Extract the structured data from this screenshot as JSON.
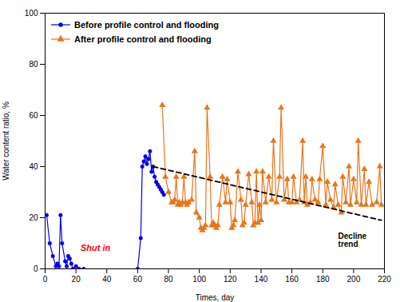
{
  "chart_data": {
    "type": "line",
    "title": "",
    "xlabel": "Times, day",
    "ylabel": "Water content ratio, %",
    "xlim": [
      0,
      220
    ],
    "ylim": [
      0,
      100
    ],
    "xticks": [
      0,
      20,
      40,
      60,
      80,
      100,
      120,
      140,
      160,
      180,
      200,
      220
    ],
    "yticks": [
      0,
      20,
      40,
      60,
      80,
      100
    ],
    "grid": false,
    "legend": "upper left",
    "series": [
      {
        "name": "Before profile control and flooding",
        "color": "#0000EE",
        "marker": "circle",
        "line_style": "solid",
        "x": [
          1,
          3,
          5,
          7,
          8,
          9,
          10,
          11,
          13,
          14,
          15,
          16,
          17,
          18,
          20,
          22,
          25,
          60,
          62,
          63,
          64,
          65,
          66,
          67,
          68,
          69,
          70,
          71,
          72,
          73,
          74,
          75,
          76,
          77
        ],
        "values": [
          21,
          10,
          5,
          1,
          2,
          1,
          21,
          10,
          3,
          1,
          5,
          4,
          2,
          0,
          1,
          0,
          0,
          0,
          12,
          40,
          42,
          44,
          41,
          43,
          46,
          38,
          40,
          36,
          34,
          33,
          32,
          31,
          30,
          29
        ]
      },
      {
        "name": "After profile control and flooding",
        "color": "#E8761A",
        "marker": "triangle",
        "line_style": "solid",
        "x": [
          76,
          78,
          80,
          82,
          83,
          84,
          85,
          86,
          87,
          88,
          89,
          90,
          91,
          92,
          93,
          95,
          97,
          98,
          100,
          101,
          102,
          103,
          104,
          105,
          107,
          108,
          109,
          110,
          111,
          112,
          113,
          115,
          117,
          118,
          120,
          121,
          122,
          123,
          125,
          127,
          128,
          129,
          130,
          132,
          134,
          135,
          136,
          137,
          138,
          139,
          140,
          141,
          143,
          145,
          147,
          148,
          150,
          152,
          153,
          155,
          157,
          158,
          160,
          161,
          163,
          165,
          167,
          168,
          169,
          170,
          172,
          173,
          175,
          177,
          178,
          180,
          182,
          183,
          185,
          187,
          188,
          190,
          192,
          193,
          195,
          197,
          198,
          200,
          202,
          203,
          205,
          207,
          208,
          210,
          212,
          215,
          217,
          218
        ],
        "values": [
          64,
          36,
          30,
          26,
          26,
          27,
          36,
          25,
          26,
          25,
          26,
          36,
          26,
          25,
          26,
          27,
          46,
          22,
          20,
          16,
          15,
          16,
          17,
          63,
          36,
          17,
          18,
          17,
          16,
          17,
          25,
          36,
          26,
          35,
          26,
          16,
          17,
          19,
          38,
          27,
          17,
          18,
          25,
          37,
          26,
          17,
          18,
          38,
          18,
          25,
          19,
          38,
          26,
          36,
          27,
          50,
          26,
          36,
          63,
          27,
          35,
          26,
          26,
          36,
          26,
          27,
          50,
          26,
          36,
          25,
          26,
          35,
          27,
          26,
          35,
          48,
          25,
          34,
          27,
          24,
          33,
          25,
          22,
          36,
          26,
          40,
          25,
          35,
          26,
          50,
          25,
          39,
          25,
          34,
          25,
          26,
          40,
          25
        ]
      },
      {
        "color": "#000000",
        "line_style": "dashed",
        "x": [
          70,
          218
        ],
        "values": [
          40,
          19
        ]
      }
    ],
    "annotations": [
      {
        "text": "Shut in",
        "x": 23,
        "y": 7,
        "color": "#FF0000"
      },
      {
        "text": "Decline\ntrend",
        "x": 190,
        "y": 14,
        "color": "#000000"
      }
    ]
  }
}
